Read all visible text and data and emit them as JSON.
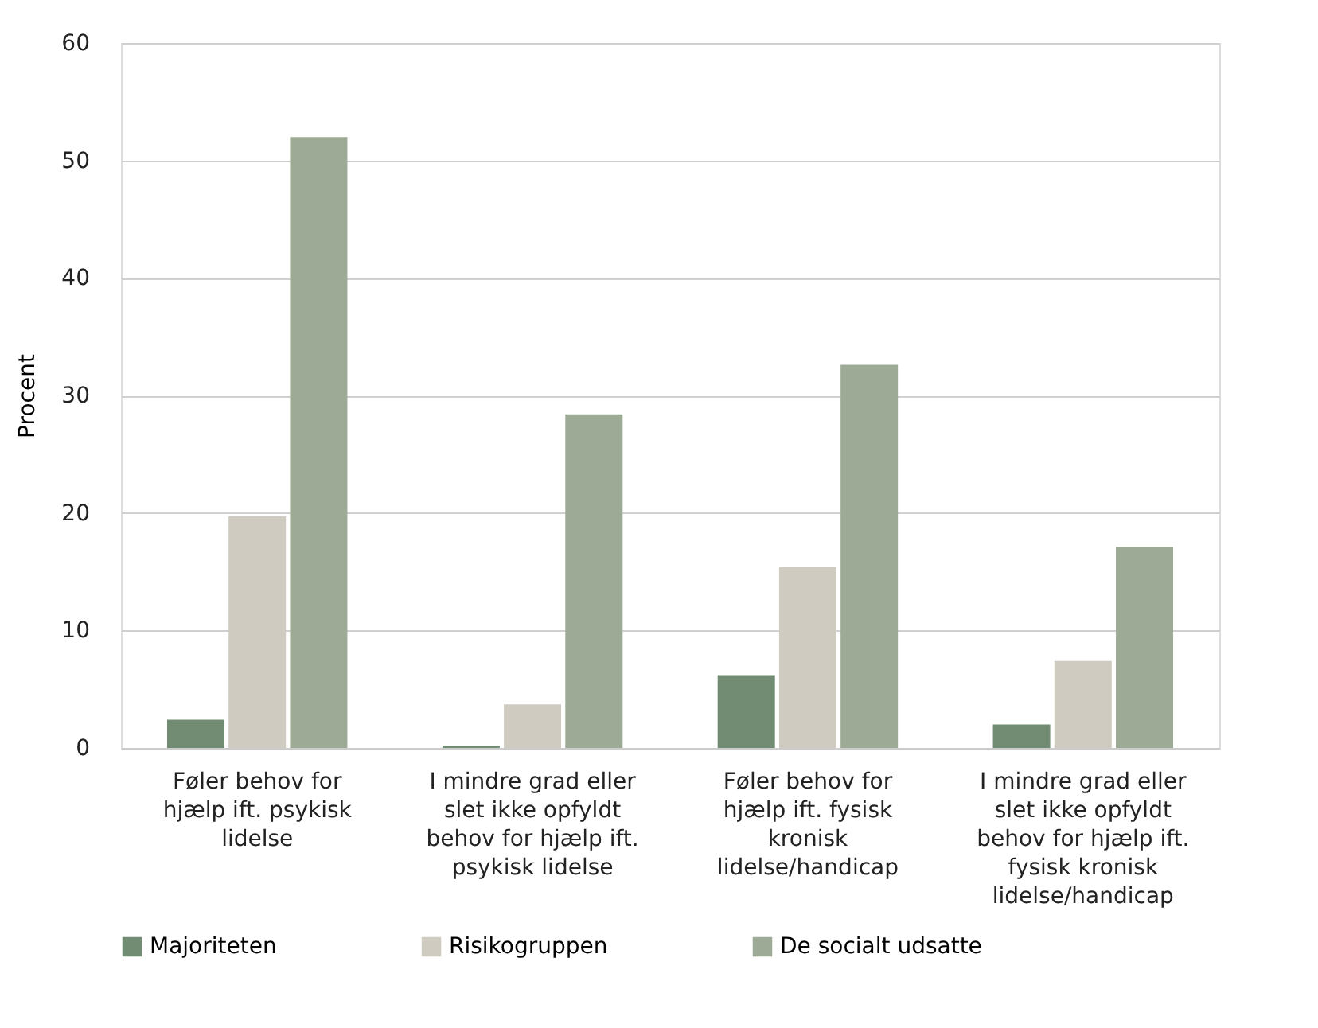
{
  "chart_data": {
    "type": "bar",
    "ylabel": "Procent",
    "categories": [
      "Føler behov for hjælp ift. psykisk lidelse",
      "I mindre grad eller slet ikke opfyldt behov for hjælp ift. psykisk lidelse",
      "Føler behov for hjælp ift. fysisk kronisk lidelse/handicap",
      "I mindre grad eller slet ikke opfyldt behov for hjælp ift. fysisk kronisk lidelse/handicap"
    ],
    "series": [
      {
        "name": "Majoriteten",
        "color": "#728b73",
        "values": [
          2.4,
          0.2,
          6.2,
          2.0
        ]
      },
      {
        "name": "Risikogruppen",
        "color": "#cfcbc0",
        "values": [
          19.7,
          3.7,
          15.4,
          7.4
        ]
      },
      {
        "name": "De socialt udsatte",
        "color": "#9caa96",
        "values": [
          52.0,
          28.4,
          32.6,
          17.1
        ]
      }
    ],
    "ylim": [
      0,
      60
    ],
    "yticks": [
      0,
      10,
      20,
      30,
      40,
      50,
      60
    ],
    "grid": "y",
    "legend": "bottom"
  }
}
